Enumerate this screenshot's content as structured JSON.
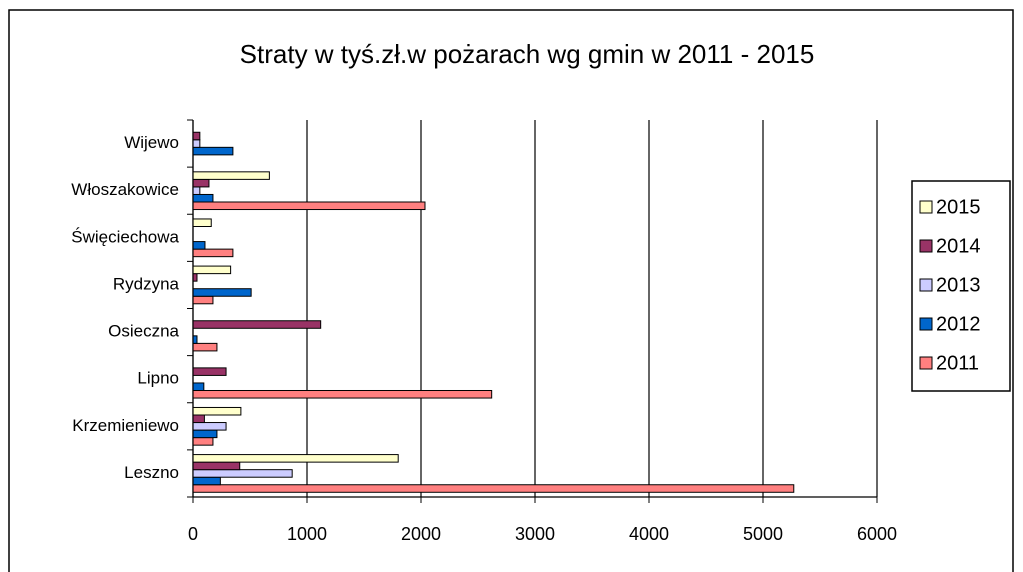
{
  "chart_data": {
    "type": "hbar",
    "title": "Straty w tyś.zł.w pożarach wg gmin w 2011 - 2015",
    "categories": [
      "Leszno",
      "Krzemieniewo",
      "Lipno",
      "Osieczna",
      "Rydzyna",
      "Święciechowa",
      "Włoszakowice",
      "Wijewo"
    ],
    "series": [
      {
        "name": "2011",
        "color": "#ff8080",
        "values": [
          5270,
          175,
          2620,
          210,
          175,
          350,
          2035,
          0
        ]
      },
      {
        "name": "2012",
        "color": "#0066cc",
        "values": [
          240,
          210,
          95,
          35,
          510,
          105,
          175,
          350
        ]
      },
      {
        "name": "2013",
        "color": "#ccccff",
        "values": [
          870,
          290,
          0,
          0,
          0,
          0,
          60,
          60
        ]
      },
      {
        "name": "2014",
        "color": "#993366",
        "values": [
          410,
          100,
          290,
          1120,
          35,
          0,
          140,
          60
        ]
      },
      {
        "name": "2015",
        "color": "#ffffcc",
        "values": [
          1800,
          420,
          0,
          0,
          330,
          160,
          670,
          0
        ]
      }
    ],
    "xlim": [
      0,
      6000
    ],
    "xticks": [
      0,
      1000,
      2000,
      3000,
      4000,
      5000,
      6000
    ],
    "grid": true,
    "legend": "right"
  }
}
